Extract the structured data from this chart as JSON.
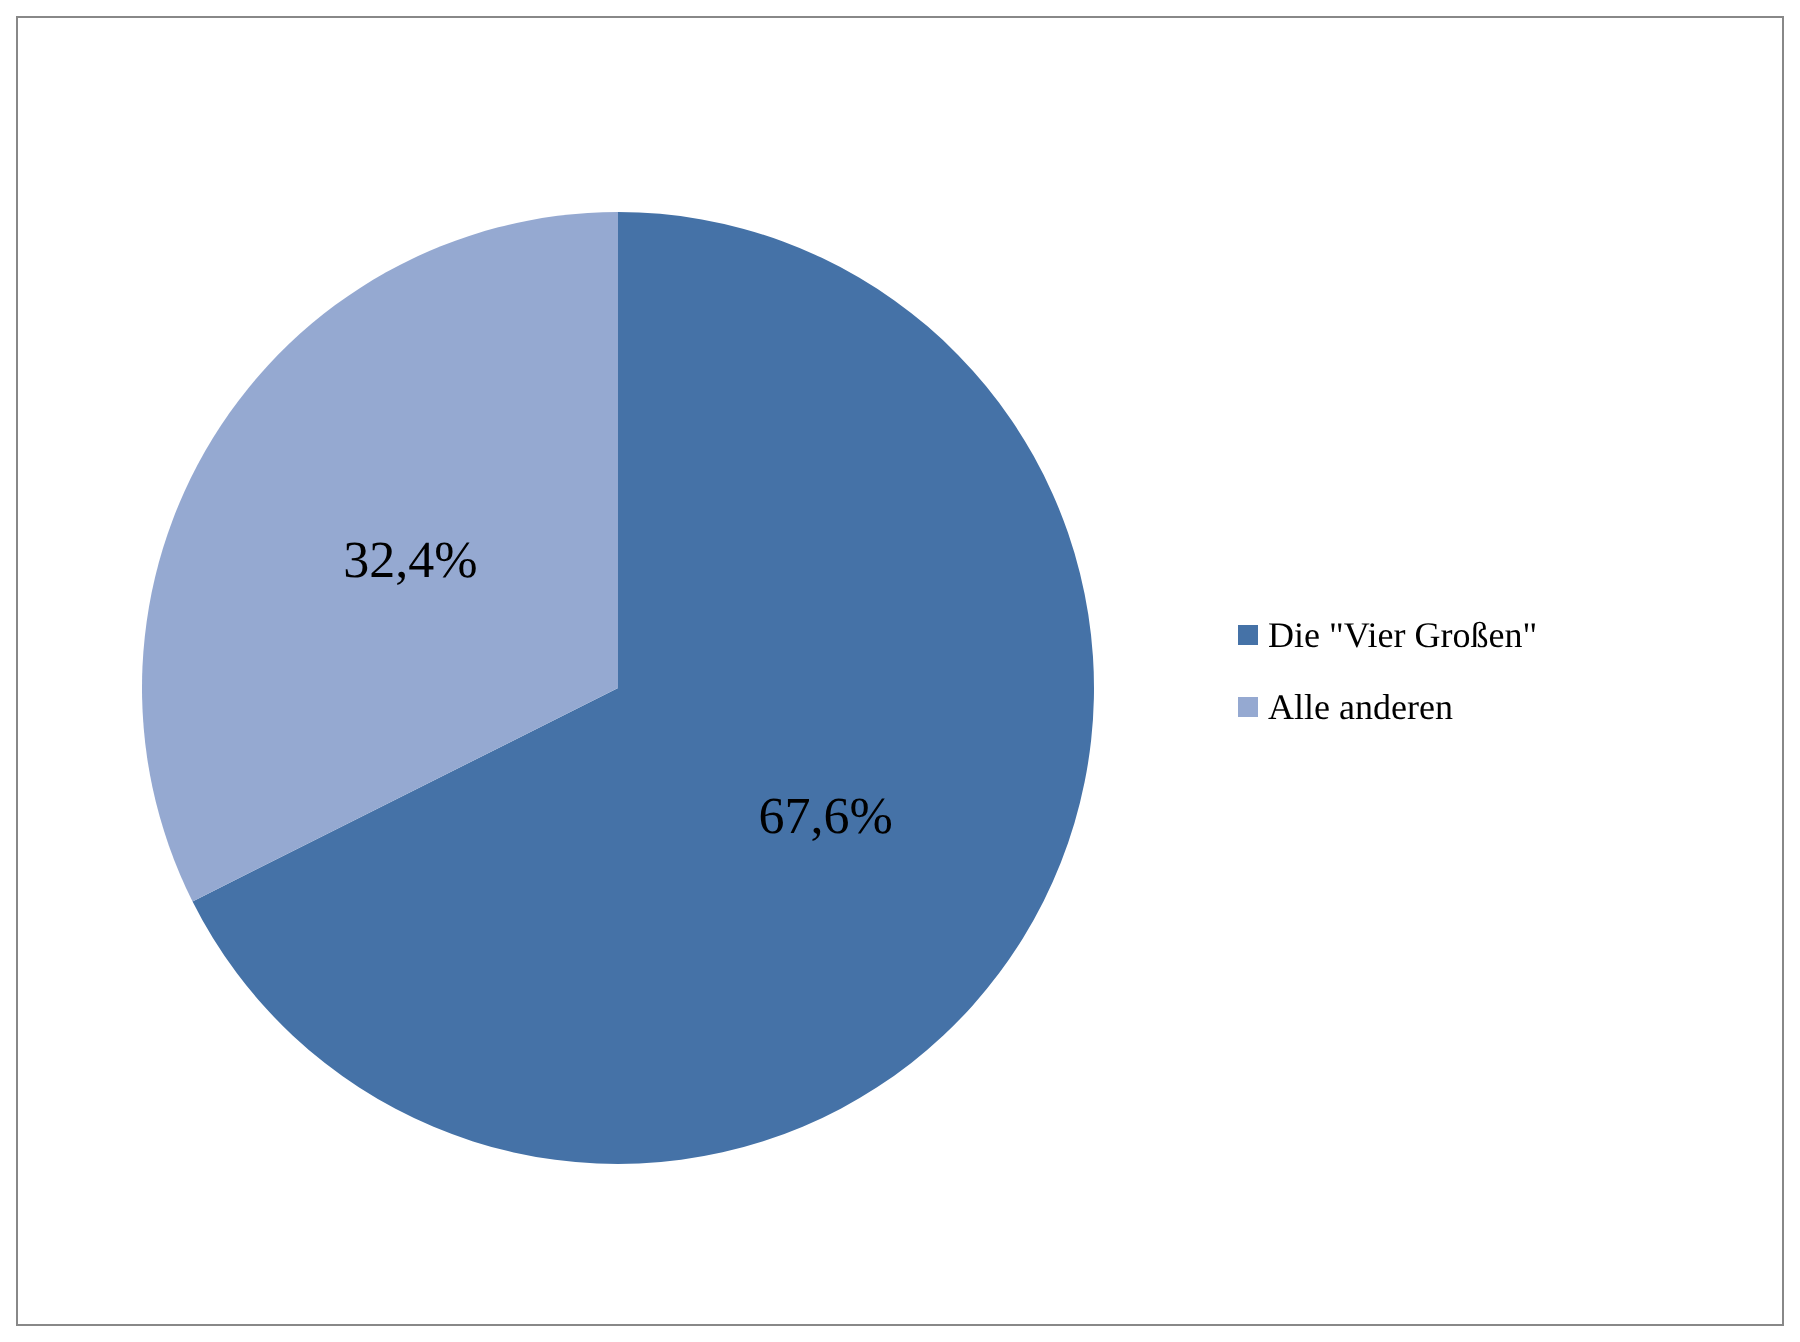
{
  "chart_data": {
    "type": "pie",
    "categories": [
      "Die \"Vier Großen\"",
      "Alle anderen"
    ],
    "values": [
      67.6,
      32.4
    ],
    "colors": [
      "#4572a7",
      "#95a9d1"
    ],
    "value_labels": [
      "67,6%",
      "32,4%"
    ],
    "legend": "right"
  }
}
